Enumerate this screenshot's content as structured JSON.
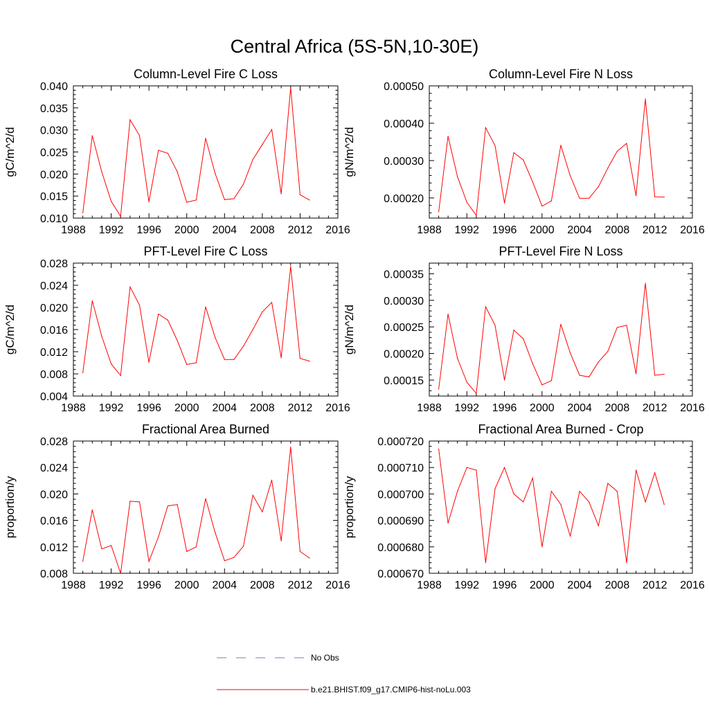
{
  "figure": {
    "title": "Central Africa (5S-5N,10-30E)",
    "series_color": "#ff0000",
    "obs_color": "#7a7ab8"
  },
  "legend": {
    "obs_label": "No Obs",
    "model_label": "b.e21.BHIST.f09_g17.CMIP6-hist-noLu.003"
  },
  "chart_data": [
    {
      "type": "line",
      "title": "Column-Level Fire C Loss",
      "ylabel": "gC/m^2/d",
      "xlim": [
        1988,
        2016
      ],
      "ylim": [
        0.01,
        0.04
      ],
      "xticks": [
        "1988",
        "1992",
        "1996",
        "2000",
        "2004",
        "2008",
        "2012",
        "2016"
      ],
      "yticks": [
        "0.010",
        "0.015",
        "0.020",
        "0.025",
        "0.030",
        "0.035",
        "0.040"
      ],
      "series": [
        {
          "x": [
            1989,
            1990,
            1991,
            1992,
            1993,
            1994,
            1995,
            1996,
            1997,
            1998,
            1999,
            2000,
            2001,
            2002,
            2003,
            2004,
            2005,
            2006,
            2007,
            2008,
            2009,
            2010,
            2011,
            2012,
            2013
          ],
          "values": [
            0.0112,
            0.0287,
            0.0205,
            0.0138,
            0.0104,
            0.0323,
            0.0287,
            0.0137,
            0.0254,
            0.0247,
            0.0205,
            0.0136,
            0.0141,
            0.0281,
            0.0202,
            0.0142,
            0.0144,
            0.0177,
            0.0233,
            0.0267,
            0.0301,
            0.0155,
            0.0396,
            0.0153,
            0.0141
          ]
        }
      ]
    },
    {
      "type": "line",
      "title": "Column-Level Fire N Loss",
      "ylabel": "gN/m^2/d",
      "xlim": [
        1988,
        2016
      ],
      "ylim": [
        0.000146,
        0.0005
      ],
      "xticks": [
        "1988",
        "1992",
        "1996",
        "2000",
        "2004",
        "2008",
        "2012",
        "2016"
      ],
      "yticks": [
        "0.00020",
        "0.00030",
        "0.00040",
        "0.00050"
      ],
      "series": [
        {
          "x": [
            1989,
            1990,
            1991,
            1992,
            1993,
            1994,
            1995,
            1996,
            1997,
            1998,
            1999,
            2000,
            2001,
            2002,
            2003,
            2004,
            2005,
            2006,
            2007,
            2008,
            2009,
            2010,
            2011,
            2012,
            2013
          ],
          "values": [
            0.000163,
            0.000365,
            0.000257,
            0.000188,
            0.000153,
            0.000388,
            0.00034,
            0.000186,
            0.000321,
            0.000302,
            0.000243,
            0.000178,
            0.000192,
            0.000341,
            0.000259,
            0.000199,
            0.000199,
            0.00023,
            0.00028,
            0.000325,
            0.000346,
            0.000206,
            0.000465,
            0.000203,
            0.000202
          ]
        }
      ]
    },
    {
      "type": "line",
      "title": "PFT-Level Fire C Loss",
      "ylabel": "gC/m^2/d",
      "xlim": [
        1988,
        2016
      ],
      "ylim": [
        0.004,
        0.028
      ],
      "xticks": [
        "1988",
        "1992",
        "1996",
        "2000",
        "2004",
        "2008",
        "2012",
        "2016"
      ],
      "yticks": [
        "0.004",
        "0.008",
        "0.012",
        "0.016",
        "0.020",
        "0.024",
        "0.028"
      ],
      "series": [
        {
          "x": [
            1989,
            1990,
            1991,
            1992,
            1993,
            1994,
            1995,
            1996,
            1997,
            1998,
            1999,
            2000,
            2001,
            2002,
            2003,
            2004,
            2005,
            2006,
            2007,
            2008,
            2009,
            2010,
            2011,
            2012,
            2013
          ],
          "values": [
            0.0082,
            0.0212,
            0.0148,
            0.0098,
            0.0077,
            0.0237,
            0.0204,
            0.0101,
            0.0188,
            0.0177,
            0.014,
            0.0097,
            0.01,
            0.0201,
            0.0146,
            0.0106,
            0.0106,
            0.013,
            0.016,
            0.0192,
            0.0209,
            0.0109,
            0.0274,
            0.0108,
            0.0103
          ]
        }
      ]
    },
    {
      "type": "line",
      "title": "PFT-Level Fire N Loss",
      "ylabel": "gN/m^2/d",
      "xlim": [
        1988,
        2016
      ],
      "ylim": [
        0.00012,
        0.00037
      ],
      "xticks": [
        "1988",
        "1992",
        "1996",
        "2000",
        "2004",
        "2008",
        "2012",
        "2016"
      ],
      "yticks": [
        "0.00015",
        "0.00020",
        "0.00025",
        "0.00030",
        "0.00035"
      ],
      "series": [
        {
          "x": [
            1989,
            1990,
            1991,
            1992,
            1993,
            1994,
            1995,
            1996,
            1997,
            1998,
            1999,
            2000,
            2001,
            2002,
            2003,
            2004,
            2005,
            2006,
            2007,
            2008,
            2009,
            2010,
            2011,
            2012,
            2013
          ],
          "values": [
            0.000133,
            0.000274,
            0.000191,
            0.000146,
            0.000125,
            0.000288,
            0.000253,
            0.00015,
            0.000244,
            0.000228,
            0.000181,
            0.000141,
            0.000149,
            0.000255,
            0.000201,
            0.000159,
            0.000156,
            0.000184,
            0.000204,
            0.000249,
            0.000253,
            0.000162,
            0.000332,
            0.000159,
            0.000161
          ]
        }
      ]
    },
    {
      "type": "line",
      "title": "Fractional Area Burned",
      "ylabel": "proportion/y",
      "xlim": [
        1988,
        2016
      ],
      "ylim": [
        0.008,
        0.028
      ],
      "xticks": [
        "1988",
        "1992",
        "1996",
        "2000",
        "2004",
        "2008",
        "2012",
        "2016"
      ],
      "yticks": [
        "0.008",
        "0.012",
        "0.016",
        "0.020",
        "0.024",
        "0.028"
      ],
      "series": [
        {
          "x": [
            1989,
            1990,
            1991,
            1992,
            1993,
            1994,
            1995,
            1996,
            1997,
            1998,
            1999,
            2000,
            2001,
            2002,
            2003,
            2004,
            2005,
            2006,
            2007,
            2008,
            2009,
            2010,
            2011,
            2012,
            2013
          ],
          "values": [
            0.0098,
            0.0176,
            0.0117,
            0.0122,
            0.008,
            0.0189,
            0.0188,
            0.0098,
            0.0135,
            0.0182,
            0.0184,
            0.0113,
            0.012,
            0.0193,
            0.0142,
            0.0099,
            0.0104,
            0.0121,
            0.0198,
            0.0173,
            0.0221,
            0.0129,
            0.0271,
            0.0113,
            0.0103
          ]
        }
      ]
    },
    {
      "type": "line",
      "title": "Fractional Area Burned - Crop",
      "ylabel": "proportion/y",
      "xlim": [
        1988,
        2016
      ],
      "ylim": [
        0.00067,
        0.00072
      ],
      "xticks": [
        "1988",
        "1992",
        "1996",
        "2000",
        "2004",
        "2008",
        "2012",
        "2016"
      ],
      "yticks": [
        "0.000670",
        "0.000680",
        "0.000690",
        "0.000700",
        "0.000710",
        "0.000720"
      ],
      "series": [
        {
          "x": [
            1989,
            1990,
            1991,
            1992,
            1993,
            1994,
            1995,
            1996,
            1997,
            1998,
            1999,
            2000,
            2001,
            2002,
            2003,
            2004,
            2005,
            2006,
            2007,
            2008,
            2009,
            2010,
            2011,
            2012,
            2013
          ],
          "values": [
            0.000717,
            0.000689,
            0.000701,
            0.00071,
            0.000709,
            0.000674,
            0.000702,
            0.00071,
            0.0007,
            0.000697,
            0.000706,
            0.00068,
            0.000701,
            0.000696,
            0.000684,
            0.000701,
            0.000697,
            0.000688,
            0.000704,
            0.000701,
            0.000674,
            0.000709,
            0.000697,
            0.000708,
            0.000696
          ]
        }
      ]
    }
  ]
}
